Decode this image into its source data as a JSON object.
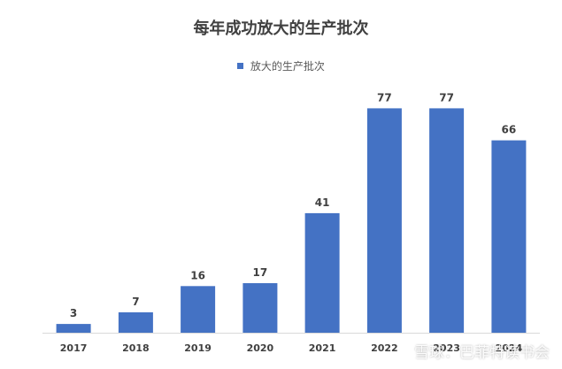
{
  "chart_data": {
    "type": "bar",
    "title": "每年成功放大的生产批次",
    "legend_position": "top",
    "series": [
      {
        "name": "放大的生产批次",
        "color": "#4472C4",
        "values": [
          3,
          7,
          16,
          17,
          41,
          77,
          77,
          66
        ]
      }
    ],
    "categories": [
      "2017",
      "2018",
      "2019",
      "2020",
      "2021",
      "2022",
      "2023",
      "2024"
    ],
    "data_labels": [
      "3",
      "7",
      "16",
      "17",
      "41",
      "77",
      "77",
      "66"
    ],
    "ylim": [
      0,
      85
    ],
    "grid": false
  },
  "watermark": "雪球：巴菲特读书会"
}
